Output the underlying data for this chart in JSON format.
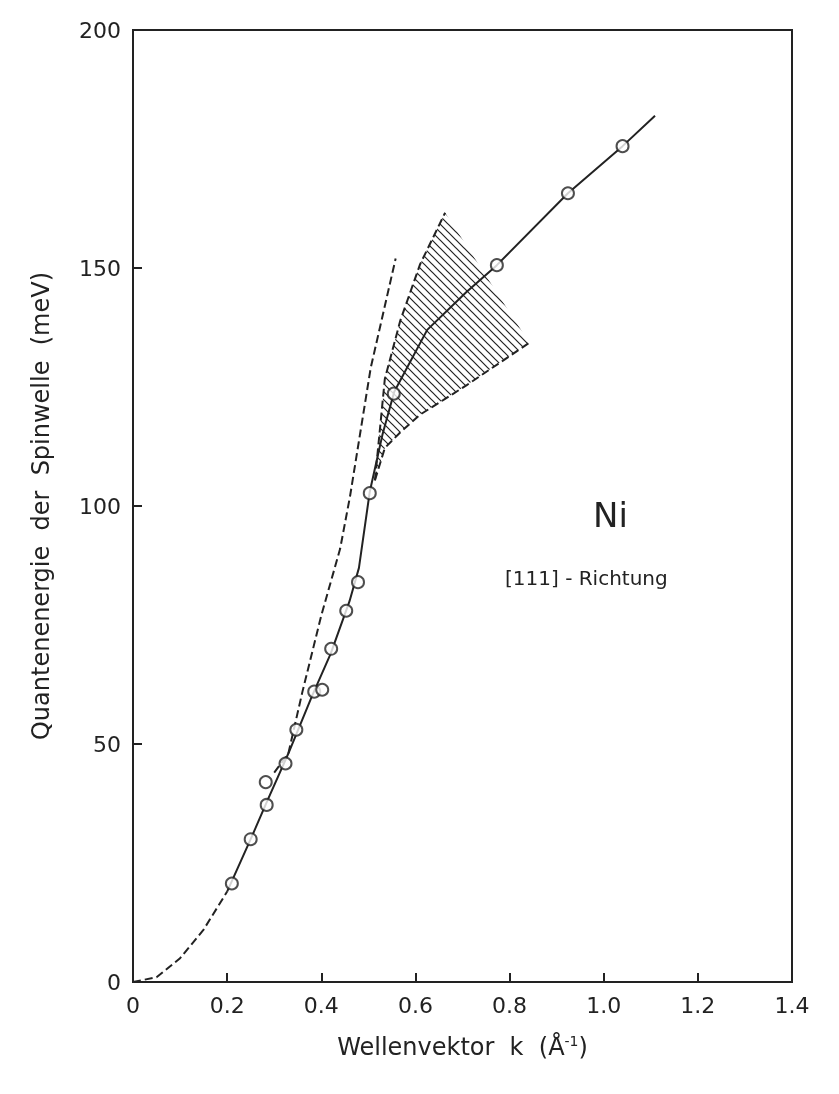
{
  "chart_data": {
    "type": "line",
    "xlabel": "Wellenvektor  k  (Å$^{-1}$)",
    "ylabel": "Quantenenergie  der  Spinwelle  (meV)",
    "annotations": [
      "Ni",
      "[111] - Richtung"
    ],
    "xlim": [
      0,
      1.4
    ],
    "xticks": [
      0,
      0.2,
      0.4,
      0.6,
      0.8,
      {
        "value": 1,
        "label": "1.0"
      },
      1.2,
      1.4
    ],
    "ylim": [
      0,
      200
    ],
    "yticks": [
      0,
      50,
      100,
      150,
      200
    ],
    "grid": false,
    "series": [
      {
        "type": "scatter",
        "marker": "circle",
        "color": "#222222",
        "x": [
          0.21,
          0.25,
          0.284,
          0.282,
          0.324,
          0.347,
          0.385,
          0.402,
          0.421,
          0.453,
          0.478,
          0.503,
          0.554,
          0.773,
          0.924,
          1.04
        ],
        "values": [
          20.7,
          30,
          37.2,
          42,
          45.9,
          53,
          61,
          61.4,
          70,
          78,
          84,
          102.7,
          123.6,
          150.6,
          165.7,
          175.6
        ]
      },
      {
        "line_style": "solid",
        "color": "#222222",
        "x": [
          0.2,
          0.25,
          0.285,
          0.33,
          0.38,
          0.42,
          0.46,
          0.48,
          0.503,
          0.53,
          0.555,
          0.625,
          0.709,
          0.773,
          0.924,
          1.04,
          1.109
        ],
        "values": [
          19,
          30,
          38,
          48,
          60,
          69,
          80,
          87,
          103,
          115,
          124,
          137,
          145,
          150.6,
          165.7,
          175.6,
          182
        ]
      },
      {
        "line_style": "dashed",
        "color": "#222222",
        "x": [
          0,
          0.05,
          0.1,
          0.15,
          0.2
        ],
        "values": [
          0,
          1,
          5,
          11,
          19
        ]
      },
      {
        "line_style": "dashed",
        "color": "#222222",
        "x": [
          0.3,
          0.33,
          0.36,
          0.4,
          0.44,
          0.461,
          0.505,
          0.558
        ],
        "values": [
          44,
          48,
          61,
          77,
          91,
          102,
          129,
          152
        ]
      },
      {
        "line_style": "dashed",
        "color": "#222222",
        "x": [
          0.514,
          0.535,
          0.568,
          0.61,
          0.663
        ],
        "values": [
          105.4,
          126.7,
          139,
          150.8,
          161.6
        ]
      },
      {
        "line_style": "dashed",
        "color": "#222222",
        "x": [
          0.514,
          0.535,
          0.568,
          0.61,
          0.663,
          0.709,
          0.842
        ],
        "values": [
          105.4,
          112.2,
          115.5,
          119.2,
          122.5,
          125.4,
          134.3
        ],
        "lower": [
          105.4,
          112.2,
          115.5,
          119.2,
          122.5,
          125.4,
          134.3
        ],
        "upper": [
          105.4,
          126.7,
          139,
          150.8,
          161.6,
          154.6,
          134.3
        ]
      }
    ]
  }
}
